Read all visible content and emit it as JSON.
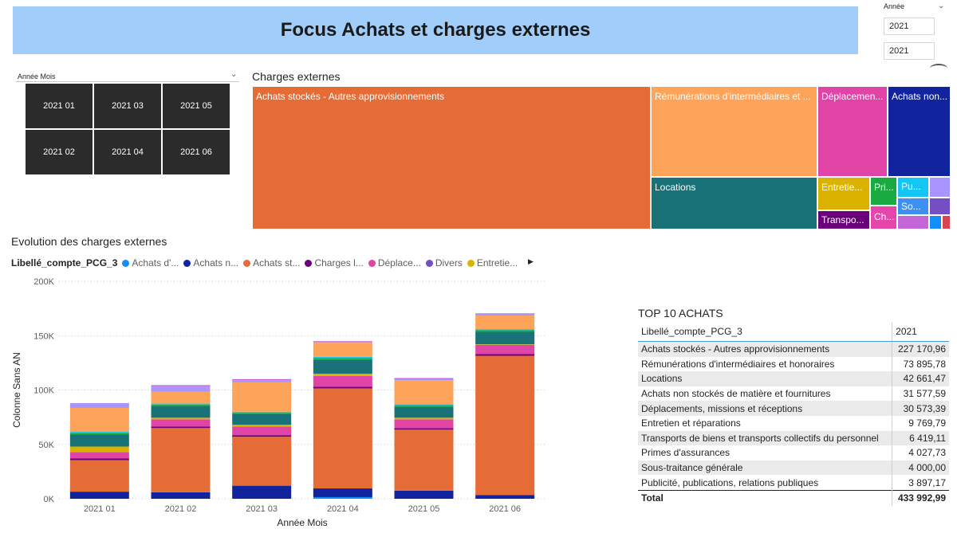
{
  "header": {
    "title": "Focus Achats et charges externes"
  },
  "year_slicer": {
    "label": "Année",
    "values": [
      "2021",
      "2021"
    ]
  },
  "month_slicer": {
    "label": "Année Mois",
    "tiles": [
      "2021 01",
      "2021 03",
      "2021 05",
      "2021 02",
      "2021 04",
      "2021 06"
    ]
  },
  "treemap": {
    "title": "Charges externes",
    "items": [
      {
        "label": "Achats stockés - Autres approvisionnements",
        "color": "#e66c37"
      },
      {
        "label": "Rémunérations d'intermédiaires et ...",
        "color": "#fea35a"
      },
      {
        "label": "Déplacemen...",
        "color": "#e044a7"
      },
      {
        "label": "Achats non...",
        "color": "#12239e"
      },
      {
        "label": "Locations",
        "color": "#197278"
      },
      {
        "label": "Entretie...",
        "color": "#d9b300"
      },
      {
        "label": "Pri...",
        "color": "#1aab40"
      },
      {
        "label": "Pu...",
        "color": "#15c6f4"
      },
      {
        "label": "Transpo...",
        "color": "#a895fe"
      },
      {
        "label": "Ch...",
        "color": "#6b007b"
      },
      {
        "label": "So...",
        "color": "#e645ab"
      },
      {
        "label": "",
        "color": "#3f8ff0"
      },
      {
        "label": "",
        "color": "#744ec2"
      },
      {
        "label": "",
        "color": "#c566d8"
      },
      {
        "label": "",
        "color": "#118dff"
      },
      {
        "label": "",
        "color": "#d64550"
      }
    ]
  },
  "evolution": {
    "title": "Evolution des charges externes",
    "legend_title": "Libellé_compte_PCG_3",
    "legend": [
      {
        "label": "Achats d'...",
        "color": "#118dff"
      },
      {
        "label": "Achats n...",
        "color": "#12239e"
      },
      {
        "label": "Achats st...",
        "color": "#e66c37"
      },
      {
        "label": "Charges l...",
        "color": "#6b007b"
      },
      {
        "label": "Déplace...",
        "color": "#e044a7"
      },
      {
        "label": "Divers",
        "color": "#744ec2"
      },
      {
        "label": "Entretie...",
        "color": "#d9b300"
      }
    ]
  },
  "chart_data": {
    "type": "bar",
    "stacked": true,
    "xlabel": "Année Mois",
    "ylabel": "Colonne Sans AN",
    "ylim": [
      0,
      200000
    ],
    "yticks": [
      "0K",
      "50K",
      "100K",
      "150K",
      "200K"
    ],
    "categories": [
      "2021 01",
      "2021 02",
      "2021 03",
      "2021 04",
      "2021 05",
      "2021 06"
    ],
    "series": [
      {
        "color": "#118dff",
        "values": [
          0,
          0,
          0,
          1500,
          0,
          0
        ]
      },
      {
        "color": "#12239e",
        "values": [
          6500,
          6000,
          12000,
          8000,
          7500,
          3500
        ]
      },
      {
        "color": "#e66c37",
        "values": [
          29000,
          59000,
          45000,
          92000,
          56000,
          128000
        ]
      },
      {
        "color": "#6b007b",
        "values": [
          1500,
          1500,
          1500,
          1500,
          1500,
          1500
        ]
      },
      {
        "color": "#e044a7",
        "values": [
          6000,
          6500,
          8000,
          10000,
          8000,
          8500
        ]
      },
      {
        "color": "#d9b300",
        "values": [
          5000,
          1500,
          1500,
          2000,
          1500,
          500
        ]
      },
      {
        "color": "#197278",
        "values": [
          11000,
          11000,
          10000,
          13000,
          10000,
          11500
        ]
      },
      {
        "color": "#1aab40",
        "values": [
          1500,
          1000,
          1000,
          1500,
          1500,
          1500
        ]
      },
      {
        "color": "#15c6f4",
        "values": [
          1000,
          1000,
          1000,
          1000,
          1000,
          1000
        ]
      },
      {
        "color": "#fea35a",
        "values": [
          22000,
          11000,
          27000,
          13000,
          22000,
          12500
        ]
      },
      {
        "color": "#a895fe",
        "values": [
          4500,
          5000,
          2000,
          1000,
          1000,
          1500
        ]
      },
      {
        "color": "#c566d8",
        "values": [
          0,
          1000,
          1000,
          500,
          1000,
          500
        ]
      }
    ]
  },
  "top10": {
    "title": "TOP 10 ACHATS",
    "col_label": "Libellé_compte_PCG_3",
    "col_year": "2021",
    "rows": [
      {
        "label": "Achats stockés - Autres approvisionnements",
        "value": "227 170,96"
      },
      {
        "label": "Rémunérations d'intermédiaires et honoraires",
        "value": "73 895,78"
      },
      {
        "label": "Locations",
        "value": "42 661,47"
      },
      {
        "label": "Achats non stockés de matière et fournitures",
        "value": "31 577,59"
      },
      {
        "label": "Déplacements, missions et réceptions",
        "value": "30 573,39"
      },
      {
        "label": "Entretien et réparations",
        "value": "9 769,79"
      },
      {
        "label": "Transports de biens et transports collectifs du personnel",
        "value": "6 419,11"
      },
      {
        "label": "Primes d'assurances",
        "value": "4 027,73"
      },
      {
        "label": "Sous-traitance générale",
        "value": "4 000,00"
      },
      {
        "label": "Publicité, publications, relations publiques",
        "value": "3 897,17"
      }
    ],
    "total_label": "Total",
    "total_value": "433 992,99"
  }
}
